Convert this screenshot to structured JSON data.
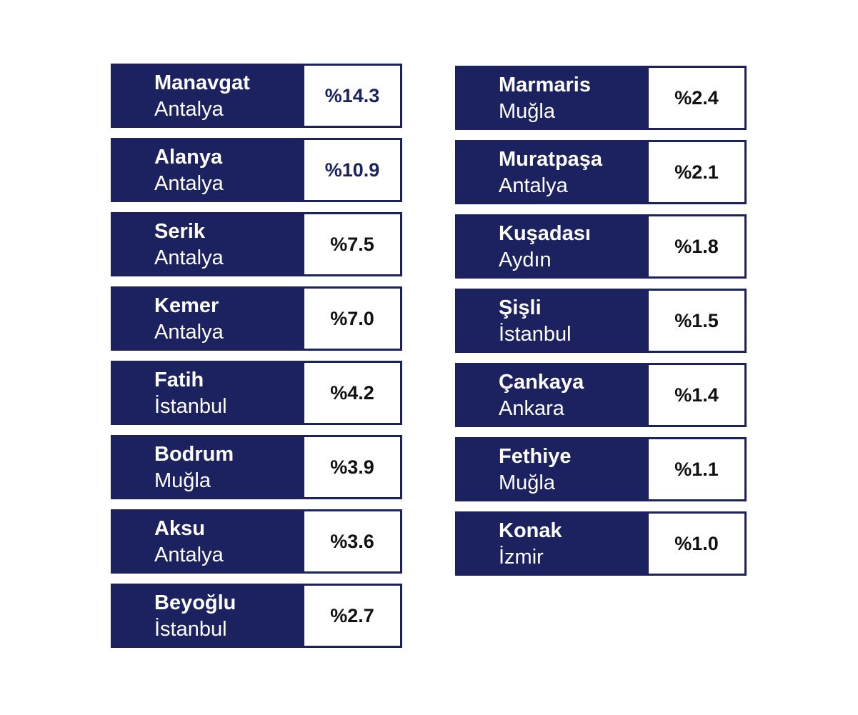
{
  "colors": {
    "card_navy": "#1c2260",
    "card_border": "#1c2260",
    "value_white": "#ffffff",
    "value_text_default": "#111111",
    "value_text_accent": "#1c2260"
  },
  "left_column": [
    {
      "name": "Manavgat",
      "region": "Antalya",
      "value": "%14.3",
      "accent": true
    },
    {
      "name": "Alanya",
      "region": "Antalya",
      "value": "%10.9",
      "accent": true
    },
    {
      "name": "Serik",
      "region": "Antalya",
      "value": "%7.5",
      "accent": false
    },
    {
      "name": "Kemer",
      "region": "Antalya",
      "value": "%7.0",
      "accent": false
    },
    {
      "name": "Fatih",
      "region": "İstanbul",
      "value": "%4.2",
      "accent": false
    },
    {
      "name": "Bodrum",
      "region": "Muğla",
      "value": "%3.9",
      "accent": false
    },
    {
      "name": "Aksu",
      "region": "Antalya",
      "value": "%3.6",
      "accent": false
    },
    {
      "name": "Beyoğlu",
      "region": "İstanbul",
      "value": "%2.7",
      "accent": false
    }
  ],
  "right_column": [
    {
      "name": "Marmaris",
      "region": "Muğla",
      "value": "%2.4",
      "accent": false
    },
    {
      "name": "Muratpaşa",
      "region": "Antalya",
      "value": "%2.1",
      "accent": false
    },
    {
      "name": "Kuşadası",
      "region": "Aydın",
      "value": "%1.8",
      "accent": false
    },
    {
      "name": "Şişli",
      "region": "İstanbul",
      "value": "%1.5",
      "accent": false
    },
    {
      "name": "Çankaya",
      "region": "Ankara",
      "value": "%1.4",
      "accent": false
    },
    {
      "name": "Fethiye",
      "region": "Muğla",
      "value": "%1.1",
      "accent": false
    },
    {
      "name": "Konak",
      "region": "İzmir",
      "value": "%1.0",
      "accent": false
    }
  ]
}
